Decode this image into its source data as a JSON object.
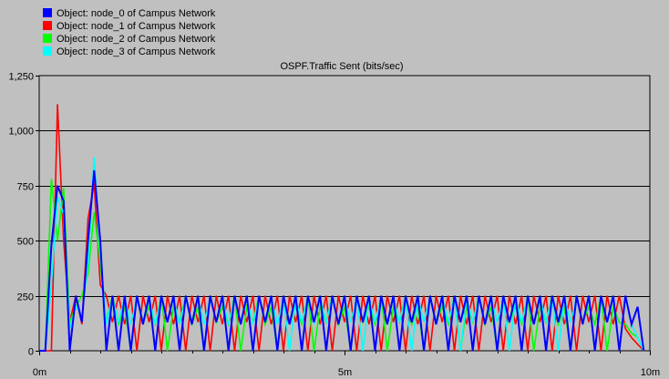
{
  "chart_data": {
    "type": "line",
    "title": "OSPF.Traffic Sent (bits/sec)",
    "xlabel": "",
    "ylabel": "",
    "xlim": [
      0,
      10
    ],
    "ylim": [
      0,
      1250
    ],
    "x_ticks": [
      {
        "value": 0,
        "label": "0m"
      },
      {
        "value": 5,
        "label": "5m"
      },
      {
        "value": 10,
        "label": "10m"
      }
    ],
    "y_ticks": [
      {
        "value": 0,
        "label": "0"
      },
      {
        "value": 250,
        "label": "250"
      },
      {
        "value": 500,
        "label": "500"
      },
      {
        "value": 750,
        "label": "750"
      },
      {
        "value": 1000,
        "label": "1,000"
      },
      {
        "value": 1250,
        "label": "1,250"
      }
    ],
    "grid": true,
    "legend_position": "top-left",
    "series": [
      {
        "name": "Object: node_0 of Campus Network",
        "color": "#0000ff",
        "x": [
          0,
          0.1,
          0.2,
          0.3,
          0.4,
          0.5,
          0.6,
          0.7,
          0.8,
          0.9,
          1.0,
          1.1,
          1.2,
          1.3,
          1.4,
          1.5,
          1.6,
          1.7,
          1.8,
          1.9,
          2.0,
          2.1,
          2.2,
          2.3,
          2.4,
          2.5,
          2.6,
          2.7,
          2.8,
          2.9,
          3.0,
          3.1,
          3.2,
          3.3,
          3.4,
          3.5,
          3.6,
          3.7,
          3.8,
          3.9,
          4.0,
          4.1,
          4.2,
          4.3,
          4.4,
          4.5,
          4.6,
          4.7,
          4.8,
          4.9,
          5.0,
          5.1,
          5.2,
          5.3,
          5.4,
          5.5,
          5.6,
          5.7,
          5.8,
          5.9,
          6.0,
          6.1,
          6.2,
          6.3,
          6.4,
          6.5,
          6.6,
          6.7,
          6.8,
          6.9,
          7.0,
          7.1,
          7.2,
          7.3,
          7.4,
          7.5,
          7.6,
          7.7,
          7.8,
          7.9,
          8.0,
          8.1,
          8.2,
          8.3,
          8.4,
          8.5,
          8.6,
          8.7,
          8.8,
          8.9,
          9.0,
          9.1,
          9.2,
          9.3,
          9.4,
          9.5,
          9.6,
          9.7,
          9.8,
          9.9
        ],
        "values": [
          0,
          0,
          480,
          750,
          680,
          0,
          250,
          130,
          500,
          820,
          500,
          0,
          250,
          0,
          250,
          0,
          250,
          120,
          250,
          0,
          250,
          130,
          250,
          0,
          250,
          120,
          250,
          0,
          250,
          130,
          250,
          0,
          250,
          120,
          250,
          0,
          250,
          130,
          250,
          0,
          250,
          120,
          250,
          0,
          250,
          130,
          250,
          0,
          250,
          120,
          250,
          0,
          250,
          130,
          250,
          0,
          250,
          120,
          250,
          0,
          250,
          130,
          250,
          0,
          250,
          120,
          250,
          0,
          250,
          130,
          250,
          0,
          250,
          120,
          250,
          0,
          250,
          130,
          250,
          0,
          250,
          120,
          250,
          0,
          250,
          130,
          250,
          0,
          250,
          120,
          250,
          0,
          250,
          130,
          250,
          0,
          250,
          120,
          200,
          0
        ]
      },
      {
        "name": "Object: node_1 of Campus Network",
        "color": "#ff0000",
        "x": [
          0,
          0.1,
          0.2,
          0.3,
          0.4,
          0.5,
          0.6,
          0.7,
          0.8,
          0.9,
          1.0,
          1.1,
          1.2,
          1.3,
          1.4,
          1.5,
          1.6,
          1.7,
          1.8,
          1.9,
          2.0,
          2.1,
          2.2,
          2.3,
          2.4,
          2.5,
          2.6,
          2.7,
          2.8,
          2.9,
          3.0,
          3.1,
          3.2,
          3.3,
          3.4,
          3.5,
          3.6,
          3.7,
          3.8,
          3.9,
          4.0,
          4.1,
          4.2,
          4.3,
          4.4,
          4.5,
          4.6,
          4.7,
          4.8,
          4.9,
          5.0,
          5.1,
          5.2,
          5.3,
          5.4,
          5.5,
          5.6,
          5.7,
          5.8,
          5.9,
          6.0,
          6.1,
          6.2,
          6.3,
          6.4,
          6.5,
          6.6,
          6.7,
          6.8,
          6.9,
          7.0,
          7.1,
          7.2,
          7.3,
          7.4,
          7.5,
          7.6,
          7.7,
          7.8,
          7.9,
          8.0,
          8.1,
          8.2,
          8.3,
          8.4,
          8.5,
          8.6,
          8.7,
          8.8,
          8.9,
          9.0,
          9.1,
          9.2,
          9.3,
          9.4,
          9.5,
          9.6,
          9.7,
          9.8,
          9.9
        ],
        "values": [
          0,
          0,
          0,
          1120,
          500,
          130,
          250,
          120,
          600,
          760,
          300,
          250,
          130,
          250,
          120,
          250,
          0,
          250,
          130,
          250,
          0,
          250,
          120,
          250,
          0,
          250,
          130,
          250,
          0,
          250,
          120,
          250,
          0,
          250,
          130,
          250,
          0,
          250,
          120,
          250,
          0,
          250,
          130,
          250,
          0,
          250,
          120,
          250,
          0,
          250,
          130,
          250,
          0,
          250,
          120,
          250,
          0,
          250,
          130,
          250,
          0,
          250,
          120,
          250,
          0,
          250,
          130,
          250,
          0,
          250,
          120,
          250,
          0,
          250,
          130,
          250,
          0,
          250,
          120,
          250,
          0,
          250,
          130,
          250,
          0,
          250,
          120,
          250,
          0,
          250,
          130,
          250,
          0,
          250,
          120,
          250,
          100,
          60,
          30,
          0
        ]
      },
      {
        "name": "Object: node_2 of Campus Network",
        "color": "#00ff00",
        "x": [
          0,
          0.1,
          0.2,
          0.3,
          0.4,
          0.5,
          0.6,
          0.7,
          0.8,
          0.9,
          1.0,
          1.1,
          1.2,
          1.3,
          1.4,
          1.5,
          1.6,
          1.7,
          1.8,
          1.9,
          2.0,
          2.1,
          2.2,
          2.3,
          2.4,
          2.5,
          2.6,
          2.7,
          2.8,
          2.9,
          3.0,
          3.1,
          3.2,
          3.3,
          3.4,
          3.5,
          3.6,
          3.7,
          3.8,
          3.9,
          4.0,
          4.1,
          4.2,
          4.3,
          4.4,
          4.5,
          4.6,
          4.7,
          4.8,
          4.9,
          5.0,
          5.1,
          5.2,
          5.3,
          5.4,
          5.5,
          5.6,
          5.7,
          5.8,
          5.9,
          6.0,
          6.1,
          6.2,
          6.3,
          6.4,
          6.5,
          6.6,
          6.7,
          6.8,
          6.9,
          7.0,
          7.1,
          7.2,
          7.3,
          7.4,
          7.5,
          7.6,
          7.7,
          7.8,
          7.9,
          8.0,
          8.1,
          8.2,
          8.3,
          8.4,
          8.5,
          8.6,
          8.7,
          8.8,
          8.9,
          9.0,
          9.1,
          9.2,
          9.3,
          9.4,
          9.5,
          9.6,
          9.7,
          9.8,
          9.9
        ],
        "values": [
          0,
          0,
          780,
          500,
          740,
          130,
          200,
          250,
          350,
          630,
          400,
          130,
          250,
          120,
          200,
          0,
          250,
          130,
          200,
          120,
          250,
          0,
          200,
          130,
          250,
          120,
          200,
          0,
          250,
          130,
          200,
          120,
          250,
          0,
          200,
          130,
          250,
          120,
          200,
          0,
          250,
          130,
          200,
          120,
          250,
          0,
          200,
          130,
          250,
          120,
          200,
          0,
          250,
          130,
          200,
          120,
          250,
          0,
          200,
          130,
          250,
          120,
          200,
          0,
          250,
          130,
          200,
          120,
          250,
          0,
          200,
          130,
          250,
          120,
          200,
          0,
          250,
          130,
          200,
          120,
          250,
          0,
          200,
          130,
          250,
          120,
          200,
          0,
          250,
          130,
          200,
          120,
          250,
          0,
          200,
          130,
          120,
          80,
          60,
          0
        ]
      },
      {
        "name": "Object: node_3 of Campus Network",
        "color": "#00ffff",
        "x": [
          0,
          0.1,
          0.2,
          0.3,
          0.4,
          0.5,
          0.6,
          0.7,
          0.8,
          0.9,
          1.0,
          1.1,
          1.2,
          1.3,
          1.4,
          1.5,
          1.6,
          1.7,
          1.8,
          1.9,
          2.0,
          2.1,
          2.2,
          2.3,
          2.4,
          2.5,
          2.6,
          2.7,
          2.8,
          2.9,
          3.0,
          3.1,
          3.2,
          3.3,
          3.4,
          3.5,
          3.6,
          3.7,
          3.8,
          3.9,
          4.0,
          4.1,
          4.2,
          4.3,
          4.4,
          4.5,
          4.6,
          4.7,
          4.8,
          4.9,
          5.0,
          5.1,
          5.2,
          5.3,
          5.4,
          5.5,
          5.6,
          5.7,
          5.8,
          5.9,
          6.0,
          6.1,
          6.2,
          6.3,
          6.4,
          6.5,
          6.6,
          6.7,
          6.8,
          6.9,
          7.0,
          7.1,
          7.2,
          7.3,
          7.4,
          7.5,
          7.6,
          7.7,
          7.8,
          7.9,
          8.0,
          8.1,
          8.2,
          8.3,
          8.4,
          8.5,
          8.6,
          8.7,
          8.8,
          8.9,
          9.0,
          9.1,
          9.2,
          9.3,
          9.4,
          9.5,
          9.6,
          9.7,
          9.8,
          9.9
        ],
        "values": [
          0,
          0,
          300,
          700,
          620,
          100,
          200,
          160,
          400,
          880,
          450,
          120,
          240,
          130,
          240,
          120,
          240,
          130,
          240,
          120,
          240,
          130,
          240,
          120,
          240,
          130,
          240,
          120,
          240,
          130,
          240,
          120,
          240,
          130,
          240,
          120,
          240,
          130,
          240,
          120,
          240,
          0,
          240,
          130,
          240,
          120,
          240,
          130,
          240,
          120,
          240,
          130,
          240,
          0,
          240,
          130,
          240,
          120,
          240,
          130,
          240,
          0,
          240,
          130,
          240,
          120,
          240,
          130,
          240,
          0,
          240,
          130,
          240,
          120,
          240,
          130,
          240,
          0,
          240,
          130,
          240,
          120,
          240,
          130,
          240,
          0,
          240,
          130,
          240,
          120,
          240,
          0,
          240,
          130,
          240,
          0,
          240,
          120,
          60,
          0
        ]
      }
    ]
  }
}
